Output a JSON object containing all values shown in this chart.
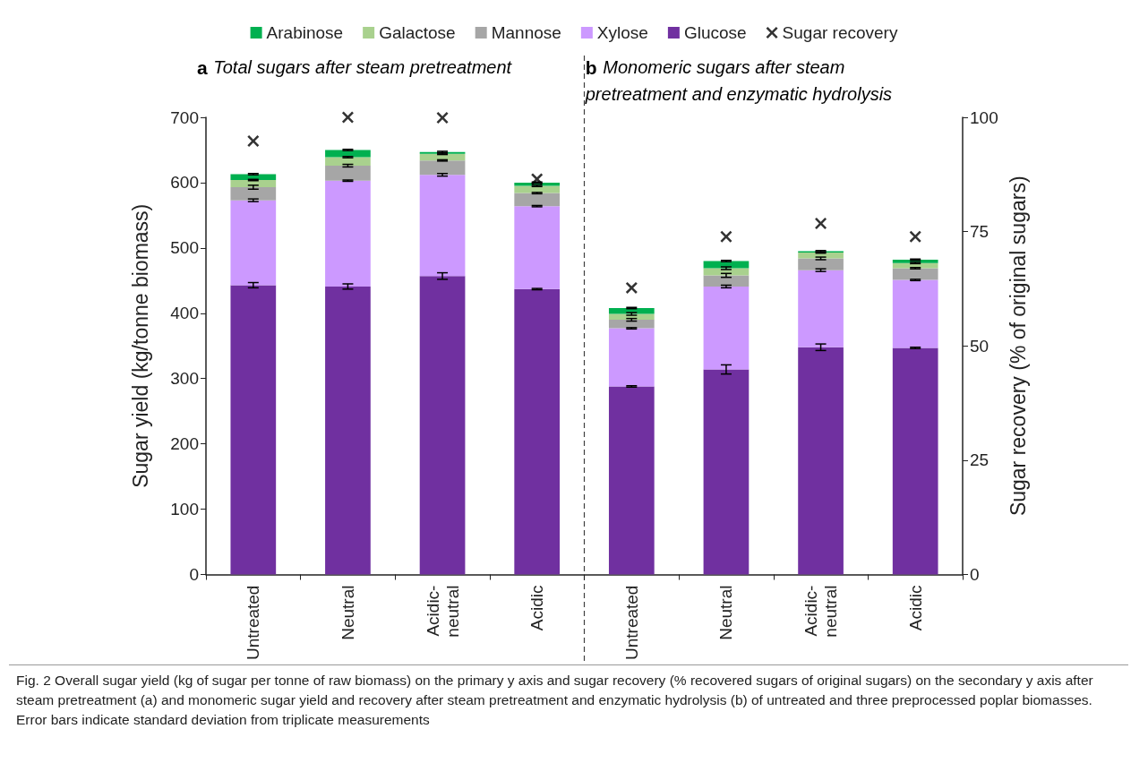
{
  "chart_data": {
    "type": "bar",
    "stacked": true,
    "categories": [
      "Untreated",
      "Neutral",
      "Acidic-\nneutral",
      "Acidic",
      "Untreated",
      "Neutral",
      "Acidic-\nneutral",
      "Acidic"
    ],
    "series": [
      {
        "name": "Glucose",
        "color": "#7030a0",
        "values": [
          443,
          441,
          457,
          437,
          288,
          314,
          348,
          347
        ],
        "errors": [
          4,
          4,
          5,
          1,
          1,
          7,
          5,
          1
        ]
      },
      {
        "name": "Xylose",
        "color": "#cc99ff",
        "values": [
          130,
          162,
          155,
          127,
          89,
          127,
          118,
          104
        ],
        "errors": [
          2,
          1,
          2,
          1,
          1,
          2,
          2,
          1
        ]
      },
      {
        "name": "Mannose",
        "color": "#a6a6a6",
        "values": [
          20,
          23,
          22,
          20,
          13,
          17,
          18,
          18
        ],
        "errors": [
          3,
          2,
          1,
          1,
          2,
          3,
          2,
          1
        ]
      },
      {
        "name": "Galactose",
        "color": "#a9d18e",
        "values": [
          11,
          13,
          10,
          11,
          9,
          11,
          9,
          8
        ],
        "errors": [
          1,
          1,
          1,
          1,
          2,
          2,
          1,
          1
        ]
      },
      {
        "name": "Arabinose",
        "color": "#00b050",
        "values": [
          9,
          11,
          3,
          5,
          9,
          11,
          2,
          5
        ],
        "errors": [
          1,
          1,
          1,
          1,
          1,
          1,
          1,
          1
        ]
      },
      {
        "name": "Sugar recovery",
        "type": "scatter",
        "axis": "y2",
        "marker": "cross",
        "color": "#000000",
        "values": [
          94.8,
          100,
          99.9,
          86.5,
          62.7,
          73.9,
          76.8,
          73.9
        ]
      }
    ],
    "ylabel": "Sugar yield (kg/tonne biomass)",
    "y2label": "Sugar recovery (% of original sugars)",
    "ylim": [
      0,
      700
    ],
    "yticks": [
      0,
      100,
      200,
      300,
      400,
      500,
      600,
      700
    ],
    "y2lim": [
      0,
      100
    ],
    "y2ticks": [
      0,
      25,
      50,
      75,
      100
    ],
    "grid": false,
    "legend": "top",
    "annotations": [
      "a Total sugars after steam pretreatment",
      "b Monomeric sugars after steam pretreatment and enzymatic hydrolysis",
      "Fig. 2 Overall sugar yield (kg of sugar per tonne of raw biomass) on the primary y axis and sugar recovery (% recovered sugars of original sugars) on the secondary y axis after steam pretreatment (a) and monomeric sugar yield and recovery after steam pretreatment and enzymatic hydrolysis (b) of untreated and three preprocessed poplar biomasses. Error bars indicate standard deviation from triplicate measurements"
    ]
  }
}
